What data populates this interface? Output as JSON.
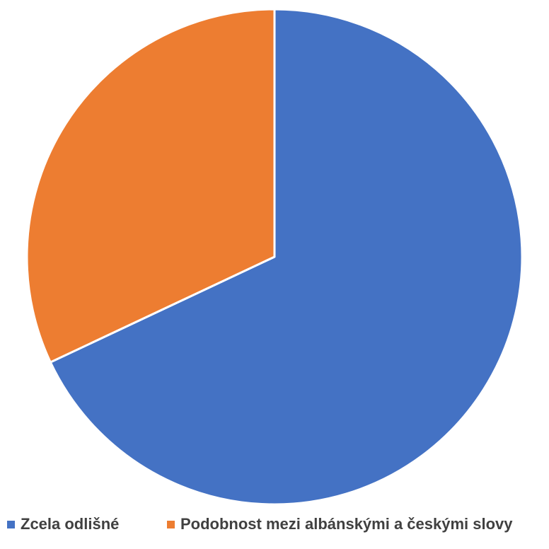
{
  "chart_data": {
    "type": "pie",
    "title": "",
    "start_angle_deg": 0,
    "direction": "clockwise",
    "slices": [
      {
        "label": "Zcela odlišné",
        "value": 68,
        "color": "#4472C4"
      },
      {
        "label": "Podobnost mezi albánskými a českými slovy",
        "value": 32,
        "color": "#ED7D31"
      }
    ],
    "legend_position": "bottom"
  }
}
